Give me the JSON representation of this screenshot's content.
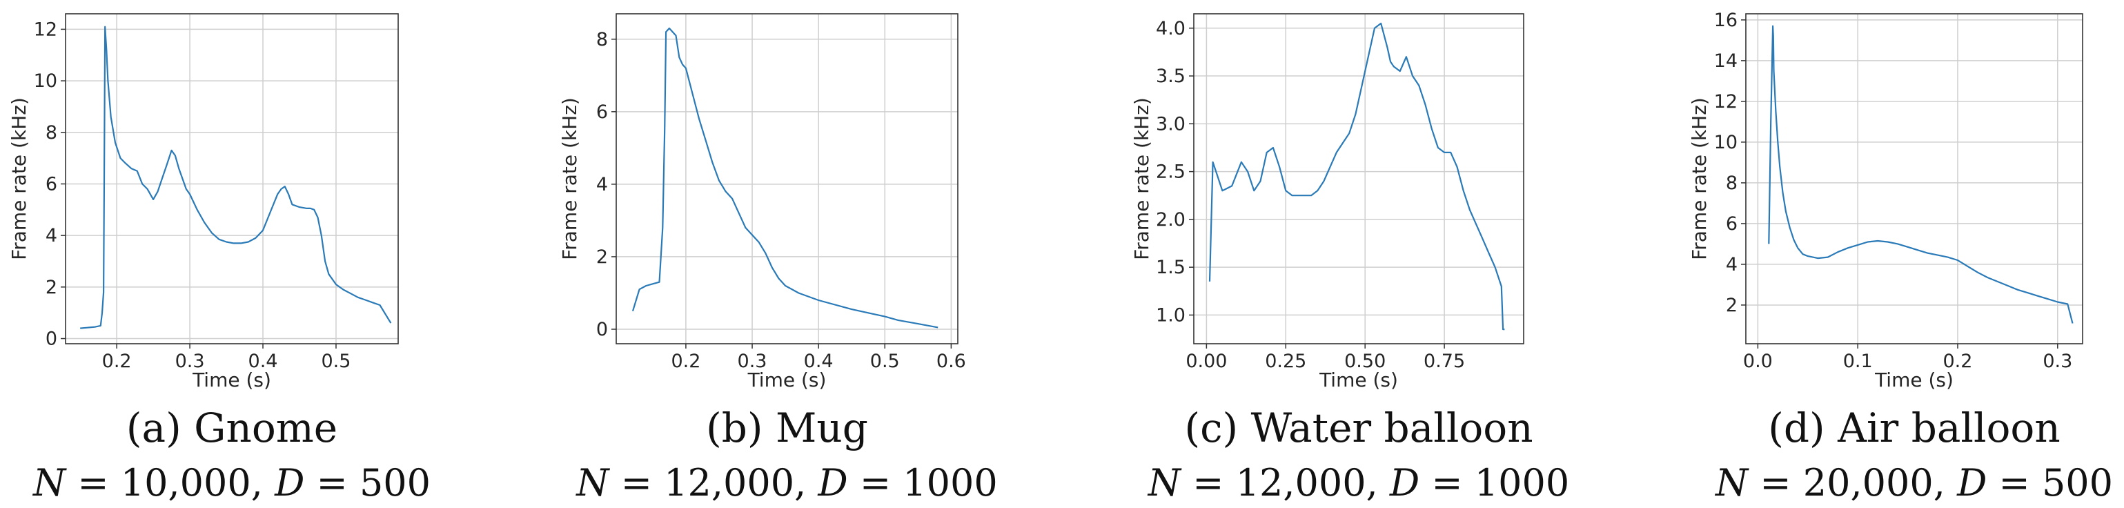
{
  "line_color": "#2a7ab8",
  "grid_color": "#cfcfcf",
  "chart_data": [
    {
      "type": "line",
      "caption": "(a) Gnome",
      "subcaption": {
        "N": "N",
        "eq": " = ",
        "nval": "10,000",
        "sep": ", ",
        "D": "D",
        "dval": "500"
      },
      "xlabel": "Time (s)",
      "ylabel": "Frame rate (kHz)",
      "xlim": [
        0.13,
        0.585
      ],
      "ylim": [
        -0.2,
        12.6
      ],
      "xticks": [
        0.2,
        0.3,
        0.4,
        0.5
      ],
      "xticklabels": [
        "0.2",
        "0.3",
        "0.4",
        "0.5"
      ],
      "yticks": [
        0,
        2,
        4,
        6,
        8,
        10,
        12
      ],
      "yticklabels": [
        "0",
        "2",
        "4",
        "6",
        "8",
        "10",
        "12"
      ],
      "grid": true,
      "series": [
        {
          "x": [
            0.15,
            0.17,
            0.178,
            0.18,
            0.182,
            0.184,
            0.186,
            0.188,
            0.192,
            0.198,
            0.205,
            0.212,
            0.22,
            0.228,
            0.235,
            0.242,
            0.25,
            0.256,
            0.262,
            0.268,
            0.275,
            0.28,
            0.285,
            0.29,
            0.295,
            0.3,
            0.31,
            0.32,
            0.33,
            0.34,
            0.35,
            0.36,
            0.37,
            0.38,
            0.39,
            0.4,
            0.41,
            0.42,
            0.425,
            0.43,
            0.435,
            0.44,
            0.45,
            0.46,
            0.465,
            0.47,
            0.475,
            0.48,
            0.485,
            0.49,
            0.5,
            0.51,
            0.52,
            0.53,
            0.54,
            0.55,
            0.56,
            0.575
          ],
          "y": [
            0.4,
            0.45,
            0.5,
            1.0,
            1.8,
            12.1,
            11.2,
            10.0,
            8.6,
            7.6,
            7.0,
            6.8,
            6.6,
            6.5,
            6.0,
            5.8,
            5.4,
            5.7,
            6.2,
            6.7,
            7.3,
            7.1,
            6.6,
            6.2,
            5.8,
            5.6,
            5.0,
            4.5,
            4.1,
            3.85,
            3.75,
            3.7,
            3.7,
            3.75,
            3.9,
            4.2,
            4.9,
            5.6,
            5.8,
            5.9,
            5.6,
            5.2,
            5.1,
            5.05,
            5.05,
            5.0,
            4.7,
            4.0,
            3.0,
            2.5,
            2.1,
            1.9,
            1.75,
            1.6,
            1.5,
            1.4,
            1.3,
            0.6
          ]
        }
      ]
    },
    {
      "type": "line",
      "caption": "(b) Mug",
      "subcaption": {
        "N": "N",
        "eq": " = ",
        "nval": "12,000",
        "sep": ", ",
        "D": "D",
        "dval": "1000"
      },
      "xlabel": "Time (s)",
      "ylabel": "Frame rate (kHz)",
      "xlim": [
        0.095,
        0.61
      ],
      "ylim": [
        -0.4,
        8.7
      ],
      "xticks": [
        0.2,
        0.3,
        0.4,
        0.5,
        0.6
      ],
      "xticklabels": [
        "0.2",
        "0.3",
        "0.4",
        "0.5",
        "0.6"
      ],
      "yticks": [
        0,
        2,
        4,
        6,
        8
      ],
      "yticklabels": [
        "0",
        "2",
        "4",
        "6",
        "8"
      ],
      "grid": true,
      "series": [
        {
          "x": [
            0.12,
            0.13,
            0.14,
            0.15,
            0.16,
            0.165,
            0.168,
            0.17,
            0.175,
            0.18,
            0.185,
            0.19,
            0.195,
            0.2,
            0.21,
            0.22,
            0.23,
            0.24,
            0.25,
            0.26,
            0.27,
            0.28,
            0.29,
            0.3,
            0.31,
            0.32,
            0.33,
            0.34,
            0.35,
            0.37,
            0.4,
            0.45,
            0.5,
            0.52,
            0.55,
            0.58
          ],
          "y": [
            0.5,
            1.1,
            1.2,
            1.25,
            1.3,
            2.8,
            5.5,
            8.2,
            8.3,
            8.2,
            8.1,
            7.5,
            7.3,
            7.2,
            6.5,
            5.8,
            5.2,
            4.6,
            4.1,
            3.8,
            3.6,
            3.2,
            2.8,
            2.6,
            2.4,
            2.1,
            1.7,
            1.4,
            1.2,
            1.0,
            0.8,
            0.55,
            0.35,
            0.25,
            0.15,
            0.05
          ]
        }
      ]
    },
    {
      "type": "line",
      "caption": "(c) Water balloon",
      "subcaption": {
        "N": "N",
        "eq": " = ",
        "nval": "12,000",
        "sep": ", ",
        "D": "D",
        "dval": "1000"
      },
      "xlabel": "Time (s)",
      "ylabel": "Frame rate (kHz)",
      "xlim": [
        -0.04,
        1.0
      ],
      "ylim": [
        0.7,
        4.15
      ],
      "xticks": [
        0.0,
        0.25,
        0.5,
        0.75
      ],
      "xticklabels": [
        "0.00",
        "0.25",
        "0.50",
        "0.75"
      ],
      "yticks": [
        1.0,
        1.5,
        2.0,
        2.5,
        3.0,
        3.5,
        4.0
      ],
      "yticklabels": [
        "1.0",
        "1.5",
        "2.0",
        "2.5",
        "3.0",
        "3.5",
        "4.0"
      ],
      "grid": true,
      "series": [
        {
          "x": [
            0.01,
            0.02,
            0.03,
            0.05,
            0.08,
            0.11,
            0.13,
            0.15,
            0.17,
            0.19,
            0.21,
            0.23,
            0.25,
            0.27,
            0.29,
            0.31,
            0.33,
            0.35,
            0.37,
            0.39,
            0.41,
            0.43,
            0.45,
            0.47,
            0.49,
            0.51,
            0.53,
            0.55,
            0.57,
            0.58,
            0.59,
            0.61,
            0.63,
            0.64,
            0.65,
            0.67,
            0.69,
            0.71,
            0.73,
            0.75,
            0.77,
            0.79,
            0.81,
            0.83,
            0.85,
            0.87,
            0.89,
            0.91,
            0.93,
            0.935,
            0.94
          ],
          "y": [
            1.35,
            2.6,
            2.5,
            2.3,
            2.35,
            2.6,
            2.5,
            2.3,
            2.4,
            2.7,
            2.75,
            2.55,
            2.3,
            2.25,
            2.25,
            2.25,
            2.25,
            2.3,
            2.4,
            2.55,
            2.7,
            2.8,
            2.9,
            3.1,
            3.4,
            3.7,
            4.0,
            4.05,
            3.8,
            3.65,
            3.6,
            3.55,
            3.7,
            3.6,
            3.5,
            3.4,
            3.2,
            2.95,
            2.75,
            2.7,
            2.7,
            2.55,
            2.3,
            2.1,
            1.95,
            1.8,
            1.65,
            1.5,
            1.3,
            0.85,
            0.85
          ]
        }
      ]
    },
    {
      "type": "line",
      "caption": "(d) Air balloon",
      "subcaption": {
        "N": "N",
        "eq": " = ",
        "nval": "20,000",
        "sep": ", ",
        "D": "D",
        "dval": "500"
      },
      "xlabel": "Time (s)",
      "ylabel": "Frame rate (kHz)",
      "xlim": [
        -0.012,
        0.325
      ],
      "ylim": [
        0.1,
        16.3
      ],
      "xticks": [
        0.0,
        0.1,
        0.2,
        0.3
      ],
      "xticklabels": [
        "0.0",
        "0.1",
        "0.2",
        "0.3"
      ],
      "yticks": [
        2,
        4,
        6,
        8,
        10,
        12,
        14,
        16
      ],
      "yticklabels": [
        "2",
        "4",
        "6",
        "8",
        "10",
        "12",
        "14",
        "16"
      ],
      "grid": true,
      "series": [
        {
          "x": [
            0.011,
            0.013,
            0.015,
            0.0155,
            0.016,
            0.018,
            0.02,
            0.022,
            0.025,
            0.028,
            0.032,
            0.036,
            0.04,
            0.045,
            0.05,
            0.06,
            0.07,
            0.08,
            0.09,
            0.1,
            0.11,
            0.12,
            0.13,
            0.14,
            0.15,
            0.16,
            0.17,
            0.18,
            0.19,
            0.2,
            0.21,
            0.22,
            0.23,
            0.24,
            0.25,
            0.26,
            0.27,
            0.28,
            0.29,
            0.3,
            0.31,
            0.315
          ],
          "y": [
            5.0,
            11.0,
            15.7,
            15.2,
            13.5,
            11.5,
            10.0,
            8.8,
            7.5,
            6.6,
            5.8,
            5.2,
            4.8,
            4.5,
            4.4,
            4.3,
            4.35,
            4.6,
            4.8,
            4.95,
            5.1,
            5.15,
            5.1,
            5.0,
            4.85,
            4.7,
            4.55,
            4.45,
            4.35,
            4.2,
            3.9,
            3.6,
            3.35,
            3.15,
            2.95,
            2.75,
            2.6,
            2.45,
            2.3,
            2.15,
            2.05,
            1.1
          ]
        }
      ]
    }
  ]
}
